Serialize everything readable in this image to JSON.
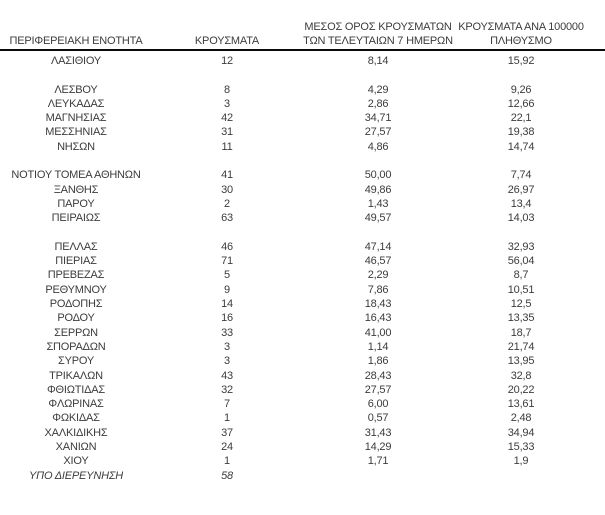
{
  "page": {
    "background_color": "#ffffff",
    "text_color": "#3c3c3c",
    "header_rule_color": "#0a0a0a"
  },
  "table": {
    "header": {
      "region": "ΠΕΡΙΦΕΡΕΙΑΚΗ ΕΝΟΤΗΤΑ",
      "cases": "ΚΡΟΥΣΜΑΤΑ",
      "avg_line1": "ΜΕΣΟΣ ΟΡΟΣ ΚΡΟΥΣΜΑΤΩΝ",
      "avg_line2": "ΤΩΝ ΤΕΛΕΥΤΑΙΩΝ 7 ΗΜΕΡΩΝ",
      "per100k_line1": "ΚΡΟΥΣΜΑΤΑ ΑΝΑ 100000",
      "per100k_line2": "ΠΛΗΘΥΣΜΟ"
    },
    "rows": [
      {
        "region": "ΛΑΣΙΘΙΟΥ",
        "cases": "12",
        "avg_7day": "8,14",
        "per_100k": "15,92"
      },
      {
        "spacer": true
      },
      {
        "region": "ΛΕΣΒΟΥ",
        "cases": "8",
        "avg_7day": "4,29",
        "per_100k": "9,26"
      },
      {
        "region": "ΛΕΥΚΑΔΑΣ",
        "cases": "3",
        "avg_7day": "2,86",
        "per_100k": "12,66"
      },
      {
        "region": "ΜΑΓΝΗΣΙΑΣ",
        "cases": "42",
        "avg_7day": "34,71",
        "per_100k": "22,1"
      },
      {
        "region": "ΜΕΣΣΗΝΙΑΣ",
        "cases": "31",
        "avg_7day": "27,57",
        "per_100k": "19,38"
      },
      {
        "region": "ΝΗΣΩΝ",
        "cases": "11",
        "avg_7day": "4,86",
        "per_100k": "14,74"
      },
      {
        "spacer": true
      },
      {
        "region": "ΝΟΤΙΟΥ ΤΟΜΕΑ ΑΘΗΝΩΝ",
        "cases": "41",
        "avg_7day": "50,00",
        "per_100k": "7,74"
      },
      {
        "region": "ΞΑΝΘΗΣ",
        "cases": "30",
        "avg_7day": "49,86",
        "per_100k": "26,97"
      },
      {
        "region": "ΠΑΡΟΥ",
        "cases": "2",
        "avg_7day": "1,43",
        "per_100k": "13,4"
      },
      {
        "region": "ΠΕΙΡΑΙΩΣ",
        "cases": "63",
        "avg_7day": "49,57",
        "per_100k": "14,03"
      },
      {
        "spacer": true
      },
      {
        "region": "ΠΕΛΛΑΣ",
        "cases": "46",
        "avg_7day": "47,14",
        "per_100k": "32,93"
      },
      {
        "region": "ΠΙΕΡΙΑΣ",
        "cases": "71",
        "avg_7day": "46,57",
        "per_100k": "56,04"
      },
      {
        "region": "ΠΡΕΒΕΖΑΣ",
        "cases": "5",
        "avg_7day": "2,29",
        "per_100k": "8,7"
      },
      {
        "region": "ΡΕΘΥΜΝΟΥ",
        "cases": "9",
        "avg_7day": "7,86",
        "per_100k": "10,51"
      },
      {
        "region": "ΡΟΔΟΠΗΣ",
        "cases": "14",
        "avg_7day": "18,43",
        "per_100k": "12,5"
      },
      {
        "region": "ΡΟΔΟΥ",
        "cases": "16",
        "avg_7day": "16,43",
        "per_100k": "13,35"
      },
      {
        "region": "ΣΕΡΡΩΝ",
        "cases": "33",
        "avg_7day": "41,00",
        "per_100k": "18,7"
      },
      {
        "region": "ΣΠΟΡΑΔΩΝ",
        "cases": "3",
        "avg_7day": "1,14",
        "per_100k": "21,74"
      },
      {
        "region": "ΣΥΡΟΥ",
        "cases": "3",
        "avg_7day": "1,86",
        "per_100k": "13,95"
      },
      {
        "region": "ΤΡΙΚΑΛΩΝ",
        "cases": "43",
        "avg_7day": "28,43",
        "per_100k": "32,8"
      },
      {
        "region": "ΦΘΙΩΤΙΔΑΣ",
        "cases": "32",
        "avg_7day": "27,57",
        "per_100k": "20,22"
      },
      {
        "region": "ΦΛΩΡΙΝΑΣ",
        "cases": "7",
        "avg_7day": "6,00",
        "per_100k": "13,61"
      },
      {
        "region": "ΦΩΚΙΔΑΣ",
        "cases": "1",
        "avg_7day": "0,57",
        "per_100k": "2,48"
      },
      {
        "region": "ΧΑΛΚΙΔΙΚΗΣ",
        "cases": "37",
        "avg_7day": "31,43",
        "per_100k": "34,94"
      },
      {
        "region": "ΧΑΝΙΩΝ",
        "cases": "24",
        "avg_7day": "14,29",
        "per_100k": "15,33"
      },
      {
        "region": "ΧΙΟΥ",
        "cases": "1",
        "avg_7day": "1,71",
        "per_100k": "1,9"
      },
      {
        "region": "ΥΠΟ ΔΙΕΡΕΥΝΗΣΗ",
        "cases": "58",
        "avg_7day": "",
        "per_100k": "",
        "italic": true
      }
    ]
  }
}
